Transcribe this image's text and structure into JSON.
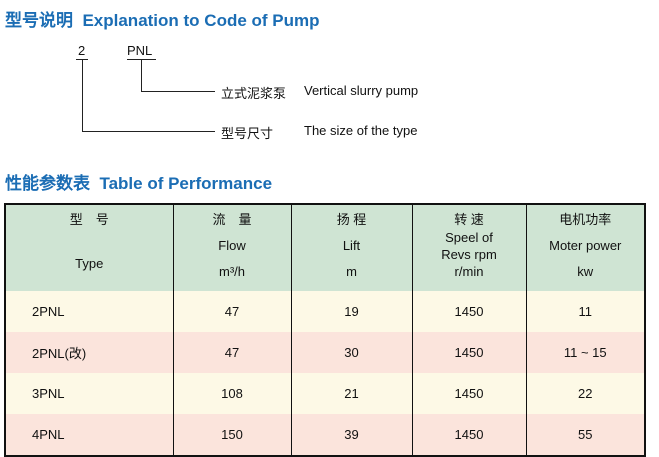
{
  "code_section": {
    "title_cn": "型号说明",
    "title_en": "Explanation to Code of Pump",
    "code_parts": [
      "2",
      "PNL"
    ],
    "legend": [
      {
        "cn": "立式泥浆泵",
        "en": "Vertical slurry pump"
      },
      {
        "cn": "型号尺寸",
        "en": "The size of the type"
      }
    ]
  },
  "perf_section": {
    "title_cn": "性能参数表",
    "title_en": "Table of Performance"
  },
  "table": {
    "headers": [
      {
        "cn": "型　号",
        "en": "",
        "unit": "Type"
      },
      {
        "cn": "流　量",
        "en": "Flow",
        "unit": "m³/h"
      },
      {
        "cn": "扬 程",
        "en": "Lift",
        "unit": "m"
      },
      {
        "cn": "转 速",
        "en": "Speel of Revs rpm",
        "unit": "r/min"
      },
      {
        "cn": "电机功率",
        "en": "Moter power",
        "unit": "kw"
      }
    ],
    "rows": [
      [
        "2PNL",
        "47",
        "19",
        "1450",
        "11"
      ],
      [
        "2PNL(改)",
        "47",
        "30",
        "1450",
        "11 ~ 15"
      ],
      [
        "3PNL",
        "108",
        "21",
        "1450",
        "22"
      ],
      [
        "4PNL",
        "150",
        "39",
        "1450",
        "55"
      ]
    ]
  },
  "colors": {
    "title": "#1b6db4",
    "header_bg": "#cfe4d3",
    "row_a": "#fdf9e6",
    "row_b": "#fbe4dc"
  }
}
